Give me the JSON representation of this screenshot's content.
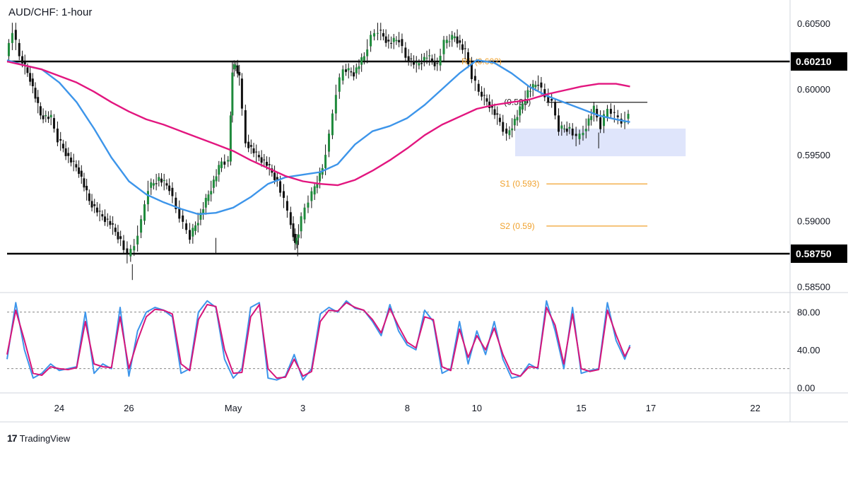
{
  "pair_title": "AUD/CHF: 1-hour",
  "brand": {
    "logo_glyph": "17",
    "name": "TradingView"
  },
  "colors": {
    "candle": "#1f8a3c",
    "candle_dark": "#111111",
    "ma_fast": "#3d95ea",
    "ma_slow": "#e2167f",
    "stoch_k": "#3d95ea",
    "stoch_d": "#d6157a",
    "pivot": "#f0a22e",
    "range_box": "#dbe2fb"
  },
  "chart_data": [
    {
      "type": "candlestick",
      "title": "AUD/CHF: 1-hour",
      "y_ticks": [
        "0.60500",
        "0.60000",
        "0.59500",
        "0.59000",
        "0.58500"
      ],
      "y_tick_values": [
        0.605,
        0.6,
        0.595,
        0.59,
        0.585
      ],
      "ylim": [
        0.5846,
        0.6065
      ],
      "x_ticks": [
        {
          "label": "24",
          "x": 24
        },
        {
          "label": "26",
          "x": 26
        },
        {
          "label": "May",
          "x": 29
        },
        {
          "label": "3",
          "x": 31
        },
        {
          "label": "8",
          "x": 34
        },
        {
          "label": "10",
          "x": 36
        },
        {
          "label": "15",
          "x": 39
        },
        {
          "label": "17",
          "x": 41
        },
        {
          "label": "22",
          "x": 44
        }
      ],
      "xlim": [
        22.5,
        45
      ],
      "price_path": [
        [
          22.5,
          0.6025
        ],
        [
          22.7,
          0.6045
        ],
        [
          22.9,
          0.6025
        ],
        [
          23.2,
          0.6008
        ],
        [
          23.5,
          0.598
        ],
        [
          23.8,
          0.5978
        ],
        [
          24.0,
          0.5962
        ],
        [
          24.3,
          0.5948
        ],
        [
          24.6,
          0.5938
        ],
        [
          24.9,
          0.5915
        ],
        [
          25.2,
          0.5905
        ],
        [
          25.5,
          0.5898
        ],
        [
          25.8,
          0.5885
        ],
        [
          26.0,
          0.5873
        ],
        [
          26.2,
          0.5882
        ],
        [
          26.4,
          0.59
        ],
        [
          26.6,
          0.5925
        ],
        [
          26.9,
          0.5932
        ],
        [
          27.2,
          0.5925
        ],
        [
          27.4,
          0.591
        ],
        [
          27.6,
          0.5898
        ],
        [
          27.8,
          0.5888
        ],
        [
          28.1,
          0.5905
        ],
        [
          28.4,
          0.5925
        ],
        [
          28.7,
          0.5945
        ],
        [
          28.9,
          0.5945
        ],
        [
          29.0,
          0.6015
        ],
        [
          29.1,
          0.6018
        ],
        [
          29.2,
          0.6008
        ],
        [
          29.4,
          0.596
        ],
        [
          29.7,
          0.595
        ],
        [
          30.0,
          0.5943
        ],
        [
          30.3,
          0.593
        ],
        [
          30.5,
          0.5915
        ],
        [
          30.7,
          0.5898
        ],
        [
          30.8,
          0.5882
        ],
        [
          30.9,
          0.5892
        ],
        [
          31.1,
          0.591
        ],
        [
          31.3,
          0.592
        ],
        [
          31.6,
          0.594
        ],
        [
          31.8,
          0.5965
        ],
        [
          32.0,
          0.5998
        ],
        [
          32.2,
          0.6015
        ],
        [
          32.5,
          0.6012
        ],
        [
          32.8,
          0.6025
        ],
        [
          33.0,
          0.604
        ],
        [
          33.2,
          0.6045
        ],
        [
          33.5,
          0.6035
        ],
        [
          33.8,
          0.6038
        ],
        [
          34.0,
          0.6025
        ],
        [
          34.3,
          0.6018
        ],
        [
          34.6,
          0.6025
        ],
        [
          34.9,
          0.6018
        ],
        [
          35.1,
          0.6035
        ],
        [
          35.4,
          0.604
        ],
        [
          35.7,
          0.6028
        ],
        [
          35.9,
          0.601
        ],
        [
          36.1,
          0.5998
        ],
        [
          36.4,
          0.5988
        ],
        [
          36.7,
          0.5975
        ],
        [
          36.9,
          0.5965
        ],
        [
          37.2,
          0.598
        ],
        [
          37.5,
          0.5998
        ],
        [
          37.8,
          0.6005
        ],
        [
          38.0,
          0.5995
        ],
        [
          38.2,
          0.599
        ],
        [
          38.4,
          0.597
        ],
        [
          38.7,
          0.597
        ],
        [
          38.9,
          0.5962
        ],
        [
          39.1,
          0.5968
        ],
        [
          39.4,
          0.5985
        ],
        [
          39.6,
          0.5972
        ],
        [
          39.8,
          0.5985
        ],
        [
          40.0,
          0.598
        ],
        [
          40.2,
          0.5975
        ],
        [
          40.4,
          0.598
        ]
      ],
      "candle_low_wicks": [
        [
          26.1,
          0.5855
        ],
        [
          30.85,
          0.5873
        ],
        [
          28.5,
          0.5875
        ],
        [
          39.5,
          0.5955
        ]
      ],
      "horizontal_levels": [
        {
          "label": "0.60210",
          "value": 0.6021
        },
        {
          "label": "0.58750",
          "value": 0.5875
        }
      ],
      "pivot_lines": [
        {
          "label": "R1 (0.602)",
          "value": 0.6021,
          "x_start": 36.9,
          "x_end": 36.9
        },
        {
          "label": "(0.599)",
          "value": 0.599,
          "x_start": 38.0,
          "x_end": 40.9
        },
        {
          "label": "S1 (0.593)",
          "value": 0.5928,
          "x_start": 38.0,
          "x_end": 40.9
        },
        {
          "label": "S2 (0.59)",
          "value": 0.5896,
          "x_start": 38.0,
          "x_end": 40.9
        }
      ],
      "range_box": {
        "x0": 37.1,
        "x1": 42.0,
        "y0": 0.5949,
        "y1": 0.597
      },
      "series": [
        {
          "role": "ma_fast",
          "x": [
            22.5,
            23.0,
            23.5,
            24.0,
            24.5,
            25.0,
            25.5,
            26.0,
            26.5,
            27.0,
            27.5,
            28.0,
            28.5,
            29.0,
            29.5,
            30.0,
            30.5,
            31.0,
            31.5,
            32.0,
            32.5,
            33.0,
            33.5,
            34.0,
            34.5,
            35.0,
            35.5,
            36.0,
            36.5,
            37.0,
            37.5,
            38.0,
            38.5,
            39.0,
            39.5,
            40.0,
            40.4
          ],
          "values": [
            0.6022,
            0.6018,
            0.6015,
            0.6005,
            0.599,
            0.597,
            0.5948,
            0.593,
            0.592,
            0.5914,
            0.5909,
            0.5905,
            0.5906,
            0.591,
            0.5918,
            0.5928,
            0.5933,
            0.5935,
            0.5937,
            0.5943,
            0.5958,
            0.5968,
            0.5972,
            0.5978,
            0.5988,
            0.6,
            0.6012,
            0.6022,
            0.602,
            0.6012,
            0.6002,
            0.5995,
            0.599,
            0.5985,
            0.598,
            0.5977,
            0.5975
          ]
        },
        {
          "role": "ma_slow",
          "x": [
            22.5,
            23.0,
            23.5,
            24.0,
            24.5,
            25.0,
            25.5,
            26.0,
            26.5,
            27.0,
            27.5,
            28.0,
            28.5,
            29.0,
            29.5,
            30.0,
            30.5,
            31.0,
            31.5,
            32.0,
            32.5,
            33.0,
            33.5,
            34.0,
            34.5,
            35.0,
            35.5,
            36.0,
            36.5,
            37.0,
            37.5,
            38.0,
            38.5,
            39.0,
            39.5,
            40.0,
            40.4
          ],
          "values": [
            0.6021,
            0.6018,
            0.6015,
            0.601,
            0.6005,
            0.5998,
            0.599,
            0.5983,
            0.5977,
            0.5973,
            0.5968,
            0.5963,
            0.5958,
            0.5953,
            0.5946,
            0.594,
            0.5934,
            0.593,
            0.5928,
            0.5927,
            0.5931,
            0.5938,
            0.5946,
            0.5955,
            0.5965,
            0.5973,
            0.5979,
            0.5985,
            0.5988,
            0.599,
            0.5992,
            0.5996,
            0.5999,
            0.6002,
            0.6004,
            0.6004,
            0.6002
          ]
        }
      ]
    },
    {
      "type": "line",
      "y_ticks": [
        "80.00",
        "40.00",
        "0.00"
      ],
      "y_tick_values": [
        80,
        40,
        0
      ],
      "ylim": [
        -5,
        100
      ],
      "guides": [
        80,
        20
      ],
      "xlim": [
        22.5,
        45
      ],
      "series": [
        {
          "role": "stoch_k",
          "x": [
            22.5,
            22.75,
            23.0,
            23.25,
            23.5,
            23.75,
            24.0,
            24.25,
            24.5,
            24.75,
            25.0,
            25.25,
            25.5,
            25.75,
            26.0,
            26.25,
            26.5,
            26.75,
            27.0,
            27.25,
            27.5,
            27.75,
            28.0,
            28.25,
            28.5,
            28.75,
            29.0,
            29.25,
            29.5,
            29.75,
            30.0,
            30.25,
            30.5,
            30.75,
            31.0,
            31.25,
            31.5,
            31.75,
            32.0,
            32.25,
            32.5,
            32.75,
            33.0,
            33.25,
            33.5,
            33.75,
            34.0,
            34.25,
            34.5,
            34.75,
            35.0,
            35.25,
            35.5,
            35.75,
            36.0,
            36.25,
            36.5,
            36.75,
            37.0,
            37.25,
            37.5,
            37.75,
            38.0,
            38.25,
            38.5,
            38.75,
            39.0,
            39.25,
            39.5,
            39.75,
            40.0,
            40.25,
            40.4
          ],
          "values": [
            30,
            90,
            40,
            10,
            15,
            25,
            18,
            20,
            22,
            80,
            15,
            25,
            20,
            85,
            12,
            60,
            80,
            85,
            82,
            75,
            15,
            20,
            80,
            92,
            85,
            30,
            10,
            20,
            85,
            90,
            10,
            8,
            12,
            35,
            8,
            20,
            78,
            85,
            80,
            92,
            84,
            82,
            70,
            55,
            88,
            60,
            45,
            40,
            82,
            70,
            15,
            20,
            70,
            25,
            60,
            35,
            70,
            30,
            10,
            12,
            25,
            20,
            92,
            60,
            20,
            85,
            15,
            18,
            20,
            90,
            50,
            30,
            45
          ]
        },
        {
          "role": "stoch_d",
          "x": [
            22.5,
            22.75,
            23.0,
            23.25,
            23.5,
            23.75,
            24.0,
            24.25,
            24.5,
            24.75,
            25.0,
            25.25,
            25.5,
            25.75,
            26.0,
            26.25,
            26.5,
            26.75,
            27.0,
            27.25,
            27.5,
            27.75,
            28.0,
            28.25,
            28.5,
            28.75,
            29.0,
            29.25,
            29.5,
            29.75,
            30.0,
            30.25,
            30.5,
            30.75,
            31.0,
            31.25,
            31.5,
            31.75,
            32.0,
            32.25,
            32.5,
            32.75,
            33.0,
            33.25,
            33.5,
            33.75,
            34.0,
            34.25,
            34.5,
            34.75,
            35.0,
            35.25,
            35.5,
            35.75,
            36.0,
            36.25,
            36.5,
            36.75,
            37.0,
            37.25,
            37.5,
            37.75,
            38.0,
            38.25,
            38.5,
            38.75,
            39.0,
            39.25,
            39.5,
            39.75,
            40.0,
            40.25,
            40.4
          ],
          "values": [
            35,
            82,
            50,
            15,
            13,
            22,
            20,
            19,
            21,
            70,
            25,
            22,
            21,
            75,
            20,
            50,
            75,
            83,
            82,
            78,
            25,
            18,
            72,
            88,
            86,
            40,
            15,
            16,
            75,
            88,
            20,
            10,
            11,
            30,
            12,
            17,
            70,
            82,
            81,
            90,
            85,
            82,
            72,
            58,
            84,
            65,
            48,
            42,
            75,
            72,
            22,
            18,
            62,
            32,
            55,
            40,
            63,
            35,
            15,
            12,
            22,
            21,
            85,
            66,
            25,
            78,
            20,
            17,
            19,
            82,
            56,
            33,
            43
          ]
        }
      ]
    }
  ]
}
